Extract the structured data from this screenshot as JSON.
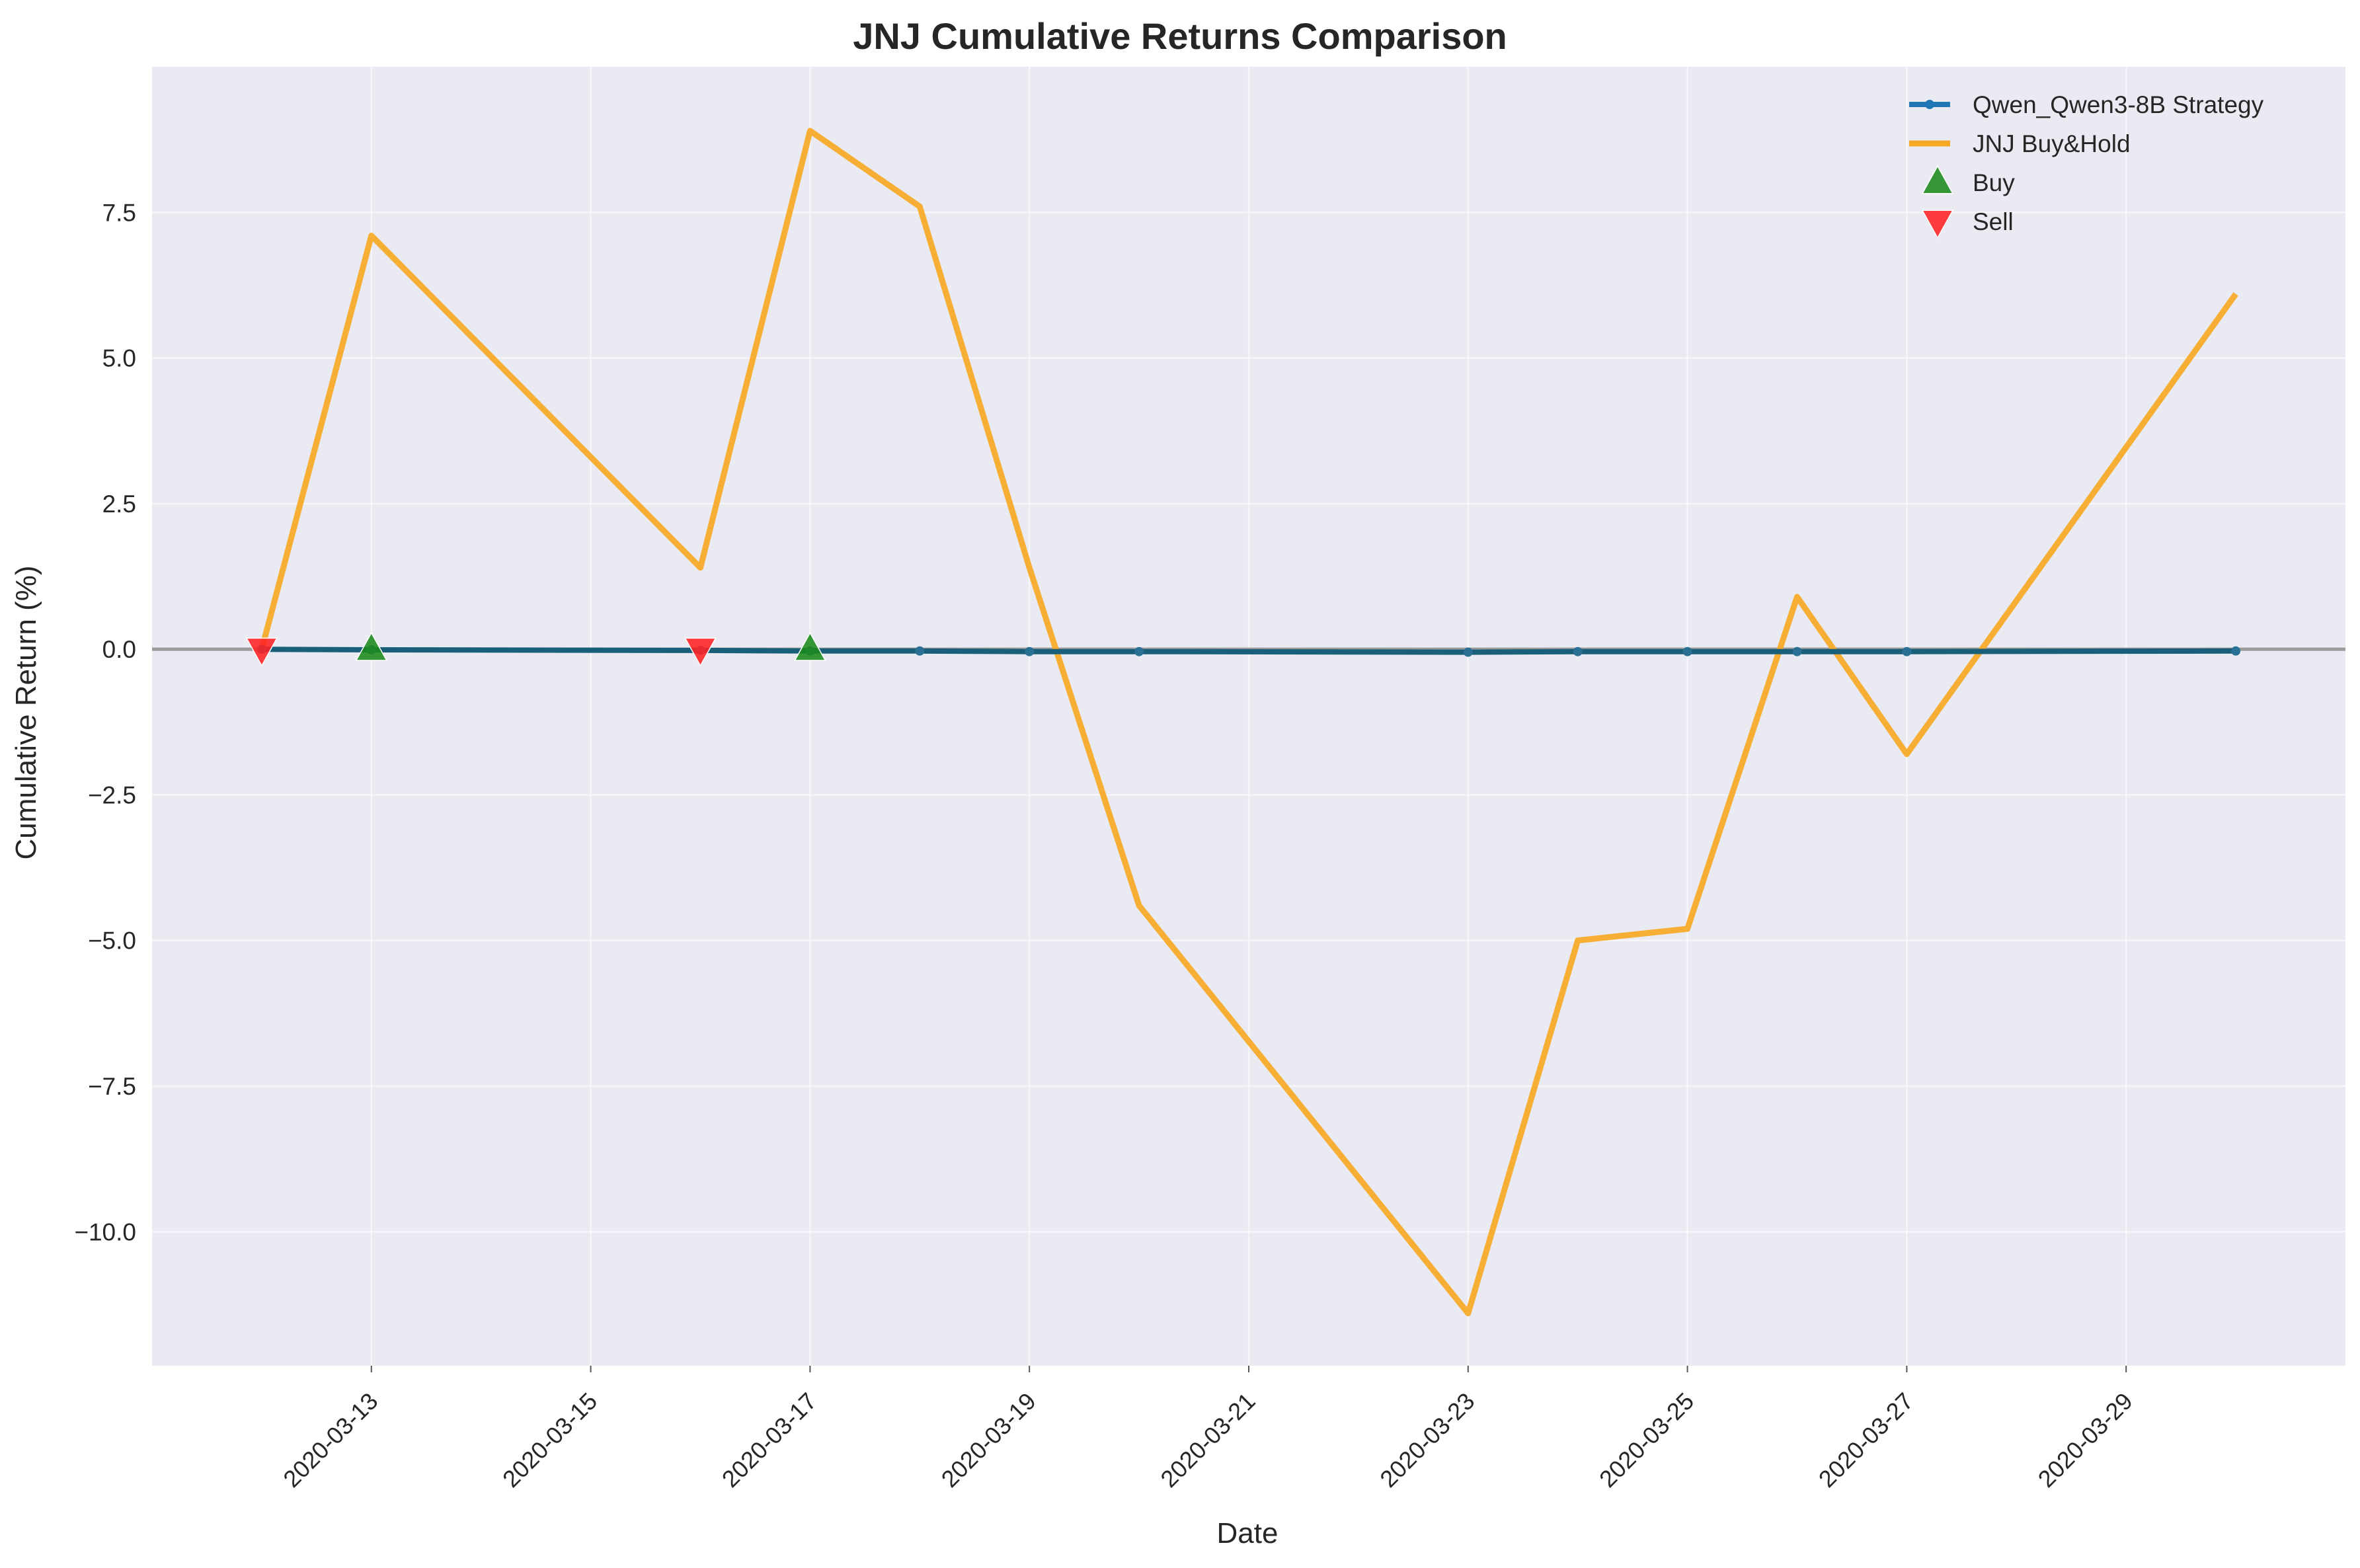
{
  "chart_data": {
    "type": "line",
    "title": "JNJ Cumulative Returns Comparison",
    "xlabel": "Date",
    "ylabel": "Cumulative Return (%)",
    "x": [
      "2020-03-12",
      "2020-03-13",
      "2020-03-16",
      "2020-03-17",
      "2020-03-18",
      "2020-03-19",
      "2020-03-20",
      "2020-03-23",
      "2020-03-24",
      "2020-03-25",
      "2020-03-26",
      "2020-03-27",
      "2020-03-30"
    ],
    "series": [
      {
        "name": "Qwen_Qwen3-8B Strategy",
        "color": "#1f77b4",
        "values": [
          0.0,
          -0.01,
          -0.02,
          -0.03,
          -0.03,
          -0.04,
          -0.04,
          -0.05,
          -0.04,
          -0.04,
          -0.04,
          -0.04,
          -0.03
        ]
      },
      {
        "name": "JNJ Buy&Hold",
        "color": "#f7a825",
        "values": [
          0.0,
          7.1,
          1.4,
          8.9,
          7.6,
          1.4,
          -4.4,
          -11.4,
          -5.0,
          -4.8,
          0.9,
          -1.8,
          6.1
        ]
      }
    ],
    "markers": [
      {
        "name": "Buy",
        "color": "#1a8a1a",
        "symbol": "triangle-up",
        "points": [
          {
            "x": "2020-03-13",
            "y": 0.0
          },
          {
            "x": "2020-03-17",
            "y": 0.0
          }
        ]
      },
      {
        "name": "Sell",
        "color": "#ff2222",
        "symbol": "triangle-down",
        "points": [
          {
            "x": "2020-03-12",
            "y": 0.0
          },
          {
            "x": "2020-03-16",
            "y": 0.0
          }
        ]
      }
    ],
    "xlim": [
      "2020-03-11",
      "2020-03-31"
    ],
    "x_ticks": [
      "2020-03-13",
      "2020-03-15",
      "2020-03-17",
      "2020-03-19",
      "2020-03-21",
      "2020-03-23",
      "2020-03-25",
      "2020-03-27",
      "2020-03-29"
    ],
    "ylim": [
      -12.3,
      10.0
    ],
    "y_ticks": [
      -10.0,
      -7.5,
      -5.0,
      -2.5,
      0.0,
      2.5,
      5.0,
      7.5
    ],
    "y_tick_labels": [
      "−10.0",
      "−7.5",
      "−5.0",
      "−2.5",
      "0.0",
      "2.5",
      "5.0",
      "7.5"
    ],
    "zero_line": true,
    "grid": true,
    "legend_position": "top-right",
    "background": "#eaeaf2"
  }
}
